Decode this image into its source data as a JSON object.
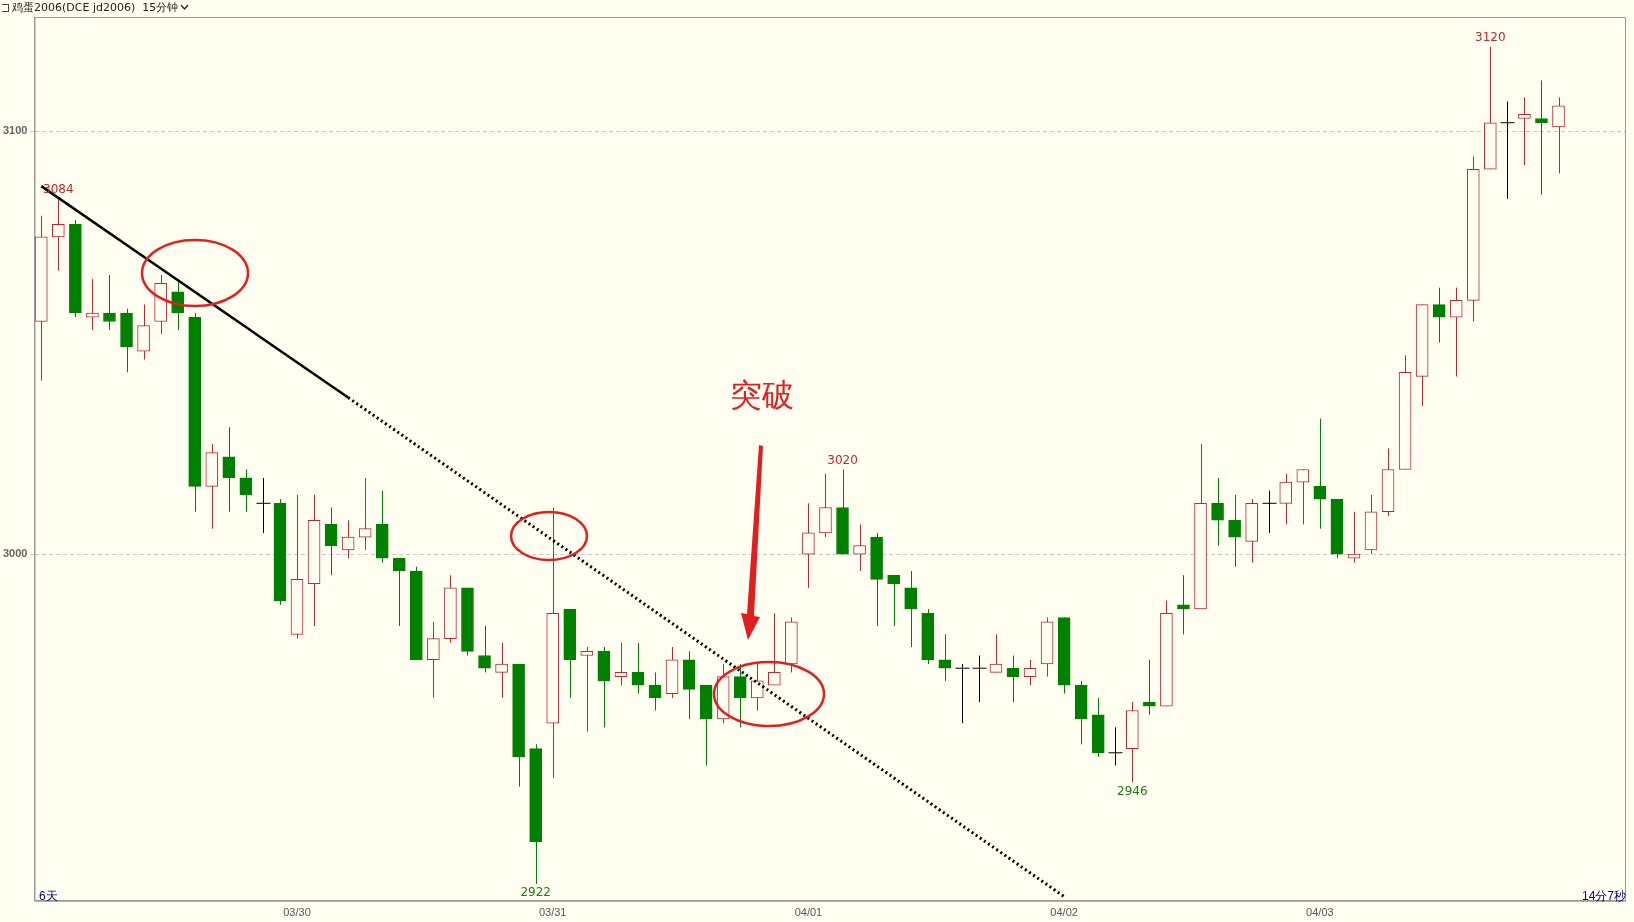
{
  "chart_data": {
    "type": "candlestick",
    "title": "鸡蛋2006(DCE jd2006)  15分钟",
    "categories": [
      null,
      null,
      null,
      null,
      null,
      null,
      null,
      null,
      null,
      null,
      null,
      null,
      null,
      null,
      null,
      "03/30",
      null,
      null,
      null,
      null,
      null,
      null,
      null,
      null,
      null,
      null,
      null,
      null,
      null,
      null,
      "03/31",
      null,
      null,
      null,
      null,
      null,
      null,
      null,
      null,
      null,
      null,
      null,
      null,
      null,
      null,
      "04/01",
      null,
      null,
      null,
      null,
      null,
      null,
      null,
      null,
      null,
      null,
      null,
      null,
      null,
      null,
      "04/02",
      null,
      null,
      null,
      null,
      null,
      null,
      null,
      null,
      null,
      null,
      null,
      null,
      null,
      null,
      "04/03",
      null,
      null,
      null,
      null,
      null,
      null,
      null,
      null,
      null,
      null,
      null,
      null,
      null,
      null
    ],
    "ohlc": [
      [
        3055,
        3080,
        3041,
        3075
      ],
      [
        3075,
        3084,
        3067,
        3078
      ],
      [
        3078,
        3079,
        3056,
        3057
      ],
      [
        3056,
        3065,
        3053,
        3057
      ],
      [
        3057,
        3066,
        3053,
        3055
      ],
      [
        3057,
        3058,
        3043,
        3049
      ],
      [
        3048,
        3059,
        3046,
        3054
      ],
      [
        3055,
        3066,
        3052,
        3064
      ],
      [
        3062,
        3065,
        3053,
        3057
      ],
      [
        3056,
        3057,
        3010,
        3016
      ],
      [
        3016,
        3026,
        3006,
        3024
      ],
      [
        3023,
        3030,
        3010,
        3018
      ],
      [
        3018,
        3020,
        3010,
        3014
      ],
      [
        3012,
        3018,
        3005,
        3012
      ],
      [
        3012,
        3013,
        2988,
        2989
      ],
      [
        2981,
        3014,
        2980,
        2994
      ],
      [
        2993,
        3014,
        2983,
        3008
      ],
      [
        3007,
        3011,
        2995,
        3002
      ],
      [
        3001,
        3008,
        2999,
        3004
      ],
      [
        3004,
        3018,
        3001,
        3006
      ],
      [
        3007,
        3015,
        2998,
        2999
      ],
      [
        2999,
        2999,
        2983,
        2996
      ],
      [
        2996,
        2997,
        2975,
        2975
      ],
      [
        2975,
        2984,
        2966,
        2980
      ],
      [
        2980,
        2995,
        2979,
        2992
      ],
      [
        2992,
        2992,
        2976,
        2977
      ],
      [
        2976,
        2983,
        2972,
        2973
      ],
      [
        2972,
        2979,
        2966,
        2974
      ],
      [
        2974,
        2974,
        2945,
        2952
      ],
      [
        2954,
        2955,
        2922,
        2932
      ],
      [
        2960,
        3011,
        2947,
        2986
      ],
      [
        2987,
        2987,
        2966,
        2975
      ],
      [
        2976,
        2978,
        2958,
        2977
      ],
      [
        2977,
        2978,
        2959,
        2970
      ],
      [
        2971,
        2979,
        2969,
        2972
      ],
      [
        2972,
        2979,
        2967,
        2969
      ],
      [
        2969,
        2972,
        2963,
        2966
      ],
      [
        2967,
        2978,
        2966,
        2975
      ],
      [
        2975,
        2977,
        2961,
        2968
      ],
      [
        2969,
        2969,
        2950,
        2961
      ],
      [
        2961,
        2974,
        2960,
        2971
      ],
      [
        2971,
        2974,
        2959,
        2966
      ],
      [
        2966,
        2974,
        2963,
        2970
      ],
      [
        2969,
        2986,
        2969,
        2972
      ],
      [
        2974,
        2985,
        2972,
        2984
      ],
      [
        3000,
        3012,
        2992,
        3005
      ],
      [
        3005,
        3019,
        3004,
        3011
      ],
      [
        3011,
        3020,
        3000,
        3000
      ],
      [
        3000,
        3007,
        2996,
        3002
      ],
      [
        3004,
        3005,
        2983,
        2994
      ],
      [
        2995,
        2995,
        2983,
        2993
      ],
      [
        2992,
        2996,
        2978,
        2987
      ],
      [
        2986,
        2987,
        2974,
        2975
      ],
      [
        2975,
        2981,
        2970,
        2973
      ],
      [
        2973,
        2974,
        2960,
        2973
      ],
      [
        2973,
        2976,
        2965,
        2973
      ],
      [
        2972,
        2981,
        2972,
        2974
      ],
      [
        2973,
        2976,
        2965,
        2971
      ],
      [
        2971,
        2975,
        2969,
        2973
      ],
      [
        2974,
        2985,
        2971,
        2984
      ],
      [
        2985,
        2985,
        2967,
        2969
      ],
      [
        2969,
        2970,
        2955,
        2961
      ],
      [
        2962,
        2966,
        2952,
        2953
      ],
      [
        2953,
        2959,
        2950,
        2953
      ],
      [
        2954,
        2965,
        2946,
        2963
      ],
      [
        2965,
        2975,
        2962,
        2964
      ],
      [
        2964,
        2989,
        2964,
        2986
      ],
      [
        2988,
        2995,
        2981,
        2987
      ],
      [
        2987,
        3026,
        2987,
        3012
      ],
      [
        3012,
        3018,
        3002,
        3008
      ],
      [
        3008,
        3014,
        2997,
        3004
      ],
      [
        3003,
        3013,
        2998,
        3012
      ],
      [
        3012,
        3015,
        3005,
        3012
      ],
      [
        3012,
        3019,
        3007,
        3017
      ],
      [
        3017,
        3020,
        3007,
        3020
      ],
      [
        3016,
        3032,
        3006,
        3013
      ],
      [
        3013,
        3013,
        2999,
        3000
      ],
      [
        2999,
        3010,
        2998,
        3000
      ],
      [
        3001,
        3014,
        3000,
        3010
      ],
      [
        3010,
        3025,
        3009,
        3020
      ],
      [
        3020,
        3047,
        3020,
        3043
      ],
      [
        3042,
        3059,
        3035,
        3059
      ],
      [
        3059,
        3063,
        3050,
        3056
      ],
      [
        3056,
        3063,
        3042,
        3060
      ],
      [
        3060,
        3094,
        3055,
        3091
      ],
      [
        3091,
        3120,
        3091,
        3102
      ],
      [
        3102,
        3107,
        3084,
        3102
      ],
      [
        3103,
        3108,
        3092,
        3104
      ],
      [
        3103,
        3112,
        3085,
        3102
      ],
      [
        3101,
        3108,
        3090,
        3106
      ]
    ],
    "colors": [
      "#c0282e",
      "#c0282e",
      "#008000",
      "#c0282e",
      "#008000",
      "#008000",
      "#c0282e",
      "#c0282e",
      "#008000",
      "#008000",
      "#c0282e",
      "#008000",
      "#008000",
      "#000000",
      "#008000",
      "#c0282e",
      "#c0282e",
      "#008000",
      "#c0282e",
      "#c0282e",
      "#008000",
      "#008000",
      "#008000",
      "#c0282e",
      "#c0282e",
      "#008000",
      "#008000",
      "#c0282e",
      "#008000",
      "#008000",
      "#c0282e",
      "#008000",
      "#c0282e",
      "#008000",
      "#c0282e",
      "#008000",
      "#008000",
      "#c0282e",
      "#008000",
      "#008000",
      "#c0282e",
      "#008000",
      "#c0282e",
      "#c0282e",
      "#c0282e",
      "#c0282e",
      "#c0282e",
      "#008000",
      "#c0282e",
      "#008000",
      "#008000",
      "#008000",
      "#008000",
      "#008000",
      "#000000",
      "#000000",
      "#c0282e",
      "#008000",
      "#c0282e",
      "#c0282e",
      "#008000",
      "#008000",
      "#008000",
      "#000000",
      "#c0282e",
      "#008000",
      "#c0282e",
      "#008000",
      "#c0282e",
      "#008000",
      "#008000",
      "#c0282e",
      "#000000",
      "#c0282e",
      "#c0282e",
      "#008000",
      "#008000",
      "#c0282e",
      "#c0282e",
      "#c0282e",
      "#c0282e",
      "#c0282e",
      "#008000",
      "#c0282e",
      "#c0282e",
      "#c0282e",
      "#000000",
      "#c0282e",
      "#008000",
      "#c0282e"
    ],
    "series": [
      {
        "type": "line",
        "color": "#000000",
        "line_style": "solid",
        "values": [
          3087,
          null,
          null,
          null,
          null,
          null,
          null,
          null,
          null,
          null,
          null,
          null,
          null,
          null,
          null,
          null,
          null,
          null,
          3037,
          null,
          null,
          null,
          null,
          null,
          null,
          null,
          null,
          null,
          null,
          null,
          null,
          null,
          null,
          null,
          null,
          null,
          null,
          null,
          null,
          null,
          null,
          null,
          null,
          null,
          null,
          null,
          null,
          null,
          null,
          null,
          null,
          null,
          null,
          null,
          null,
          null,
          null,
          null,
          null,
          null,
          null,
          null,
          null,
          null,
          null,
          null,
          null,
          null,
          null,
          null,
          null,
          null,
          null,
          null,
          null,
          null,
          null,
          null,
          null,
          null,
          null,
          null,
          null,
          null,
          null,
          null,
          null,
          null,
          null,
          null
        ]
      },
      {
        "type": "line",
        "color": "#000000",
        "line_style": "dotted",
        "values": [
          null,
          null,
          null,
          null,
          null,
          null,
          null,
          null,
          null,
          null,
          null,
          null,
          null,
          null,
          null,
          null,
          null,
          null,
          3037,
          null,
          null,
          null,
          null,
          null,
          null,
          null,
          null,
          null,
          null,
          null,
          null,
          null,
          null,
          null,
          null,
          null,
          null,
          null,
          null,
          null,
          null,
          null,
          null,
          null,
          null,
          null,
          null,
          null,
          null,
          null,
          null,
          null,
          null,
          null,
          null,
          null,
          null,
          null,
          null,
          null,
          2919,
          null,
          null,
          null,
          null,
          null,
          null,
          null,
          null,
          null,
          null,
          null,
          null,
          null,
          null,
          null,
          null,
          null,
          null,
          null,
          null,
          null,
          null,
          null,
          null,
          null,
          null,
          null,
          null,
          null
        ]
      }
    ],
    "ylim": [
      2918,
      3127
    ],
    "yticks": [
      3000,
      3100
    ],
    "grid": "y",
    "annotations": [
      {
        "text": "3084",
        "y": 3084
      },
      {
        "text": "2922",
        "y": 2922
      },
      {
        "text": "3020",
        "y": 3020
      },
      {
        "text": "2946",
        "y": 2946
      },
      {
        "text": "3120",
        "y": 3120
      },
      "突破",
      "6天",
      "14分7秒"
    ]
  }
}
